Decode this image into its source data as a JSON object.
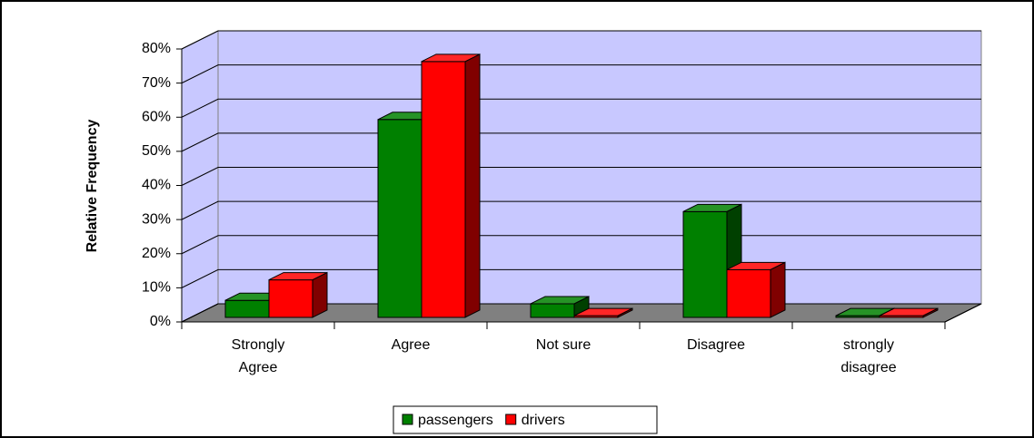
{
  "chart_data": {
    "type": "bar3d",
    "y_label": "Relative Frequency",
    "categories": [
      [
        "Strongly",
        "Agree"
      ],
      [
        "Agree"
      ],
      [
        "Not sure"
      ],
      [
        "Disagree"
      ],
      [
        "strongly",
        "disagree"
      ]
    ],
    "series": [
      {
        "name": "passengers",
        "color": "#008000",
        "values": [
          5,
          58,
          4,
          31,
          0.5
        ]
      },
      {
        "name": "drivers",
        "color": "#ff0000",
        "values": [
          11,
          75,
          0.5,
          14,
          0.5
        ]
      }
    ],
    "ylim": [
      0,
      80
    ],
    "yticks": [
      {
        "value": 0,
        "label": "0%"
      },
      {
        "value": 10,
        "label": "10%"
      },
      {
        "value": 20,
        "label": "20%"
      },
      {
        "value": 30,
        "label": "30%"
      },
      {
        "value": 40,
        "label": "40%"
      },
      {
        "value": 50,
        "label": "50%"
      },
      {
        "value": 60,
        "label": "60%"
      },
      {
        "value": 70,
        "label": "70%"
      },
      {
        "value": 80,
        "label": "80%"
      }
    ],
    "grid": true,
    "legend": "bottom"
  }
}
